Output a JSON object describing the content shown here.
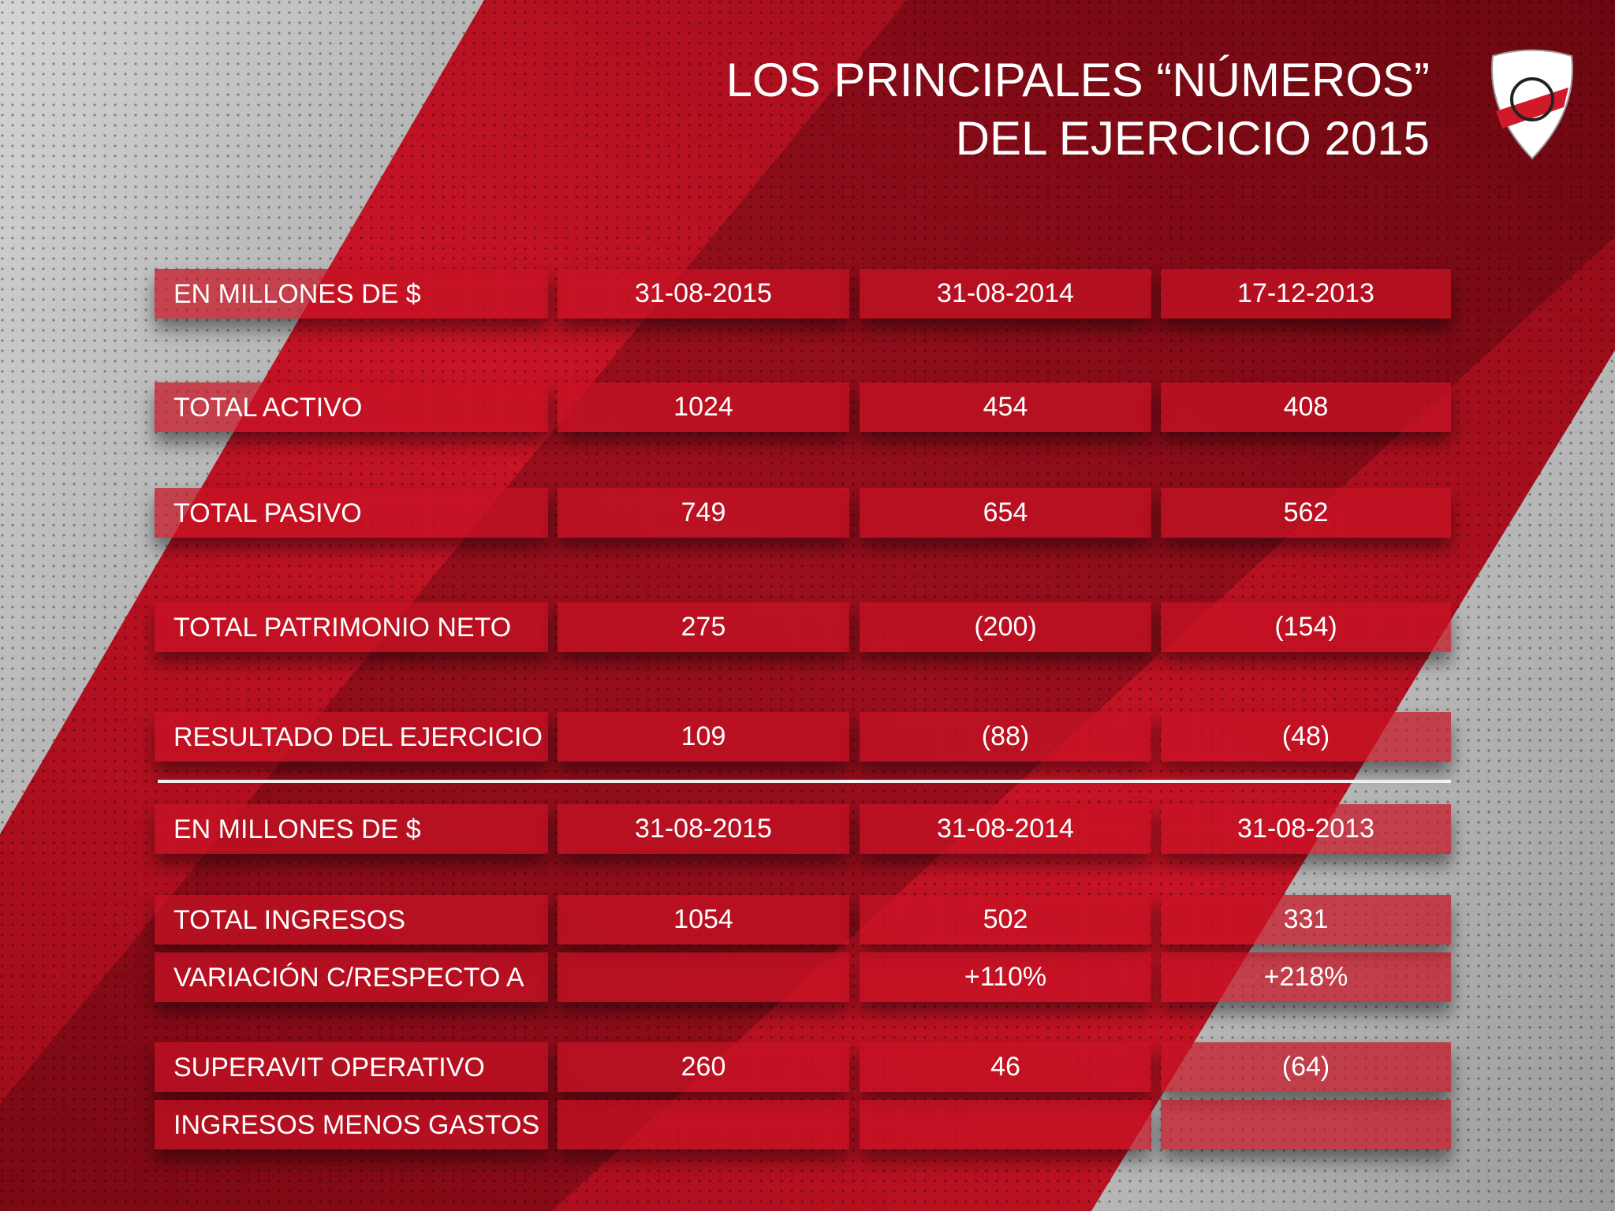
{
  "header": {
    "title_lines": [
      "LOS PRINCIPALES “NÚMEROS”",
      "DEL EJERCICIO 2015"
    ]
  },
  "table1": {
    "header": [
      "EN MILLONES DE $",
      "31-08-2015",
      "31-08-2014",
      "17-12-2013"
    ],
    "rows": [
      [
        "TOTAL ACTIVO",
        "1024",
        "454",
        "408"
      ],
      [
        "TOTAL PASIVO",
        "749",
        "654",
        "562"
      ],
      [
        "TOTAL PATRIMONIO NETO",
        "275",
        "(200)",
        "(154)"
      ],
      [
        "RESULTADO DEL EJERCICIO",
        "109",
        "(88)",
        "(48)"
      ]
    ]
  },
  "table2": {
    "header": [
      "EN MILLONES DE $",
      "31-08-2015",
      "31-08-2014",
      "31-08-2013"
    ],
    "rows": [
      [
        "TOTAL INGRESOS",
        "1054",
        "502",
        "331"
      ],
      [
        "VARIACIÓN C/RESPECTO A",
        null,
        "+110%",
        "+218%"
      ],
      [
        "SUPERAVIT OPERATIVO",
        "260",
        "46",
        "(64)"
      ],
      [
        "INGRESOS MENOS GASTOS",
        null,
        null,
        null
      ]
    ]
  }
}
